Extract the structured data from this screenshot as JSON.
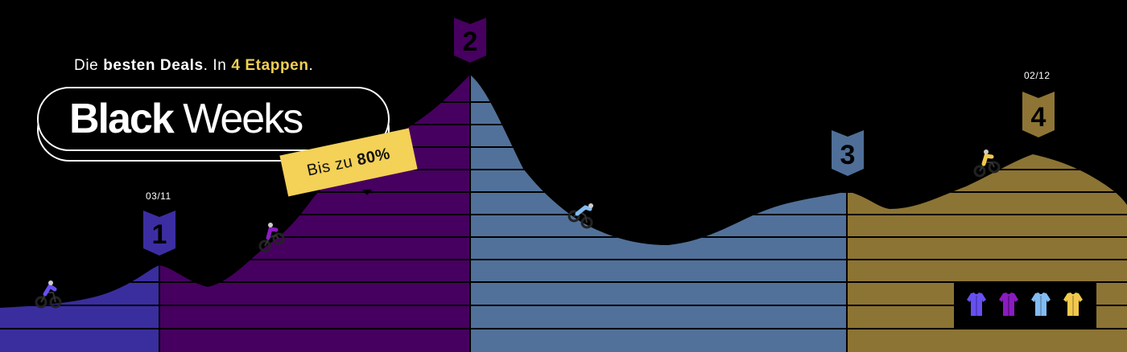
{
  "banner": {
    "tagline_prefix": "Die",
    "tagline_bold": "besten Deals",
    "tagline_mid": ". In",
    "tagline_highlight": "4 Etappen",
    "tagline_suffix": ".",
    "title_bold": "Black",
    "title_regular": " Weeks",
    "deal_prefix": "Bis zu",
    "deal_value": "80%"
  },
  "stages": [
    {
      "number": "1",
      "date": "03/11",
      "color": "#3a2d9e"
    },
    {
      "number": "2",
      "date": "",
      "color": "#46005f"
    },
    {
      "number": "3",
      "date": "",
      "color": "#51719a"
    },
    {
      "number": "4",
      "date": "02/12",
      "color": "#8c7434"
    }
  ],
  "flag_colors": {
    "1": "#3c2ea2",
    "2": "#470060",
    "3": "#4f6f98",
    "4": "#8e7536"
  },
  "icons": [
    "cyclist-icon",
    "jersey-icon"
  ],
  "jerseys": [
    {
      "name": "jersey-purple-blue-icon",
      "color": "#6650f0"
    },
    {
      "name": "jersey-violet-icon",
      "color": "#8a1cc0"
    },
    {
      "name": "jersey-light-blue-icon",
      "color": "#82bcf0"
    },
    {
      "name": "jersey-yellow-icon",
      "color": "#f2c94c"
    }
  ]
}
